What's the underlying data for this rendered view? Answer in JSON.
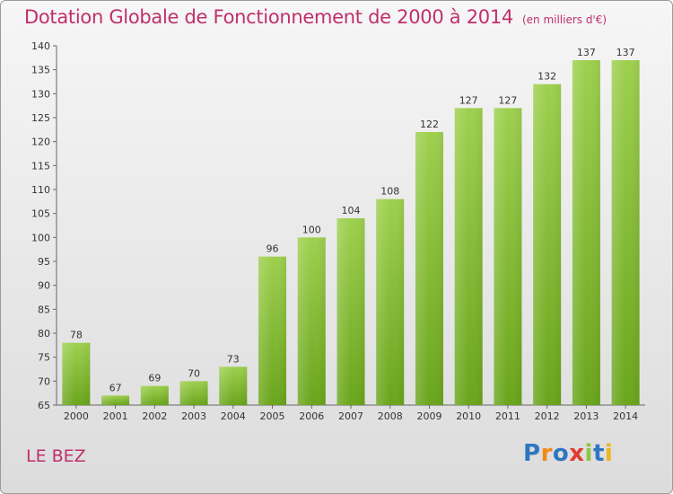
{
  "chart_data": {
    "type": "bar",
    "title": "Dotation Globale de Fonctionnement de 2000 à 2014",
    "subtitle": "(en milliers d'€)",
    "categories": [
      "2000",
      "2001",
      "2002",
      "2003",
      "2004",
      "2005",
      "2006",
      "2007",
      "2008",
      "2009",
      "2010",
      "2011",
      "2012",
      "2013",
      "2014"
    ],
    "values": [
      78,
      67,
      69,
      70,
      73,
      96,
      100,
      104,
      108,
      122,
      127,
      127,
      132,
      137,
      137
    ],
    "ylim": [
      65,
      140
    ],
    "yticks": [
      65,
      70,
      75,
      80,
      85,
      90,
      95,
      100,
      105,
      110,
      115,
      120,
      125,
      130,
      135,
      140
    ],
    "grid": false,
    "bar_color": "#8dc63f",
    "text_color": "#c0306a"
  },
  "footer": {
    "commune": "LE BEZ",
    "logo_letters": [
      {
        "ch": "P",
        "color": "#2e77c0"
      },
      {
        "ch": "r",
        "color": "#f08a1c"
      },
      {
        "ch": "o",
        "color": "#2e77c0"
      },
      {
        "ch": "x",
        "color": "#e23b2e"
      },
      {
        "ch": "i",
        "color": "#8dc63f"
      },
      {
        "ch": "t",
        "color": "#2e77c0"
      },
      {
        "ch": "i",
        "color": "#f0b41c"
      }
    ]
  }
}
